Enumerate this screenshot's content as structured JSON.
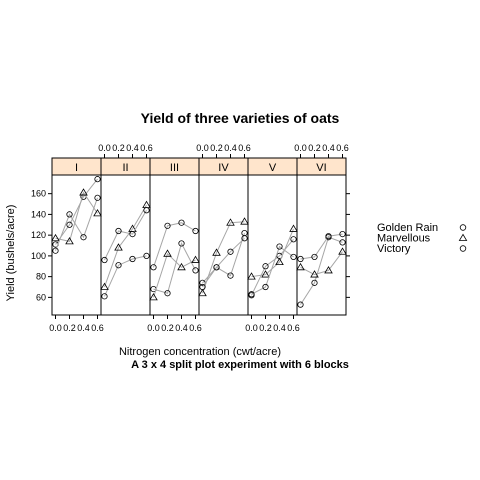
{
  "chart_data": {
    "type": "line",
    "title": "Yield of three varieties of oats",
    "subtitle": "A 3 x 4 split plot experiment with 6 blocks",
    "xlabel": "Nitrogen concentration (cwt/acre)",
    "ylabel": "Yield (bushels/acre)",
    "x": [
      0.0,
      0.2,
      0.4,
      0.6
    ],
    "x_tick_labels": [
      "0.0",
      "0.2",
      "0.4",
      "0.6"
    ],
    "y_ticks": [
      60,
      80,
      100,
      120,
      140,
      160
    ],
    "xlim": [
      -0.05,
      0.65
    ],
    "ylim": [
      43,
      178
    ],
    "panels": [
      "I",
      "II",
      "III",
      "IV",
      "V",
      "VI"
    ],
    "grid": false,
    "legend_placement": "right",
    "series_names": [
      "Golden Rain",
      "Marvellous",
      "Victory"
    ],
    "series_markers": [
      "circle",
      "triangle",
      "circle"
    ],
    "data": {
      "I": {
        "Golden Rain": [
          111,
          130,
          157,
          174
        ],
        "Marvellous": [
          117,
          114,
          161,
          141
        ],
        "Victory": [
          105,
          140,
          118,
          156
        ]
      },
      "II": {
        "Golden Rain": [
          61,
          91,
          97,
          100
        ],
        "Marvellous": [
          70,
          108,
          126,
          149
        ],
        "Victory": [
          96,
          124,
          121,
          144
        ]
      },
      "III": {
        "Golden Rain": [
          68,
          64,
          112,
          86
        ],
        "Marvellous": [
          60,
          102,
          89,
          96
        ],
        "Victory": [
          89,
          129,
          132,
          124
        ]
      },
      "IV": {
        "Golden Rain": [
          74,
          89,
          81,
          122
        ],
        "Marvellous": [
          64,
          103,
          132,
          133
        ],
        "Victory": [
          70,
          89,
          104,
          117
        ]
      },
      "V": {
        "Golden Rain": [
          62,
          90,
          100,
          116
        ],
        "Marvellous": [
          80,
          82,
          94,
          126
        ],
        "Victory": [
          63,
          70,
          109,
          99
        ]
      },
      "VI": {
        "Golden Rain": [
          53,
          74,
          118,
          113
        ],
        "Marvellous": [
          89,
          82,
          86,
          104
        ],
        "Victory": [
          97,
          99,
          119,
          121
        ]
      }
    }
  }
}
